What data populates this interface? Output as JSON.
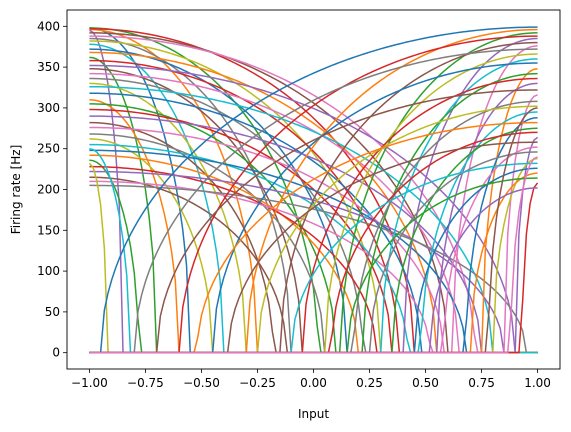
{
  "chart_data": {
    "type": "line",
    "title": "",
    "xlabel": "Input",
    "ylabel": "Firing rate [Hz]",
    "xlim": [
      -1.1,
      1.1
    ],
    "ylim": [
      -20,
      420
    ],
    "grid": false,
    "legend": "none",
    "xticks": [
      -1.0,
      -0.75,
      -0.5,
      -0.25,
      0.0,
      0.25,
      0.5,
      0.75,
      1.0
    ],
    "xtick_labels": [
      "−1.00",
      "−0.75",
      "−0.50",
      "−0.25",
      "0.00",
      "0.25",
      "0.50",
      "0.75",
      "1.00"
    ],
    "yticks": [
      0,
      50,
      100,
      150,
      200,
      250,
      300,
      350,
      400
    ],
    "ytick_labels": [
      "0",
      "50",
      "100",
      "150",
      "200",
      "250",
      "300",
      "350",
      "400"
    ],
    "palette": [
      "#1f77b4",
      "#ff7f0e",
      "#2ca02c",
      "#d62728",
      "#9467bd",
      "#8c564b",
      "#e377c2",
      "#7f7f7f",
      "#bcbd22",
      "#17becf"
    ],
    "curve_model": "rate = max_rate * (1 - max(0, 1 - enc*(x - intercept)/(1 - intercept))^2)^0.5 style rectified tuning curve",
    "x_samples": [
      -1.0,
      -0.95,
      -0.9,
      -0.85,
      -0.8,
      -0.75,
      -0.7,
      -0.65,
      -0.6,
      -0.55,
      -0.5,
      -0.45,
      -0.4,
      -0.35,
      -0.3,
      -0.25,
      -0.2,
      -0.15,
      -0.1,
      -0.05,
      0.0,
      0.05,
      0.1,
      0.15,
      0.2,
      0.25,
      0.3,
      0.35,
      0.4,
      0.45,
      0.5,
      0.55,
      0.6,
      0.65,
      0.7,
      0.75,
      0.8,
      0.85,
      0.9,
      0.95,
      1.0
    ],
    "series": [
      {
        "encoder": -1,
        "intercept": -0.55,
        "max_rate": 398
      },
      {
        "encoder": -1,
        "intercept": -0.25,
        "max_rate": 396
      },
      {
        "encoder": -1,
        "intercept": 0.02,
        "max_rate": 398
      },
      {
        "encoder": -1,
        "intercept": 0.45,
        "max_rate": 397
      },
      {
        "encoder": -1,
        "intercept": -0.85,
        "max_rate": 395
      },
      {
        "encoder": -1,
        "intercept": 0.6,
        "max_rate": 392
      },
      {
        "encoder": -1,
        "intercept": 0.72,
        "max_rate": 388
      },
      {
        "encoder": -1,
        "intercept": -0.1,
        "max_rate": 385
      },
      {
        "encoder": -1,
        "intercept": 0.3,
        "max_rate": 382
      },
      {
        "encoder": -1,
        "intercept": -0.4,
        "max_rate": 378
      },
      {
        "encoder": -1,
        "intercept": 0.15,
        "max_rate": 372
      },
      {
        "encoder": -1,
        "intercept": 0.55,
        "max_rate": 368
      },
      {
        "encoder": -1,
        "intercept": -0.7,
        "max_rate": 362
      },
      {
        "encoder": -1,
        "intercept": 0.38,
        "max_rate": 358
      },
      {
        "encoder": -1,
        "intercept": 0.9,
        "max_rate": 352
      },
      {
        "encoder": -1,
        "intercept": -0.05,
        "max_rate": 348
      },
      {
        "encoder": -1,
        "intercept": 0.65,
        "max_rate": 342
      },
      {
        "encoder": -1,
        "intercept": 0.22,
        "max_rate": 336
      },
      {
        "encoder": -1,
        "intercept": -0.3,
        "max_rate": 330
      },
      {
        "encoder": -1,
        "intercept": 0.8,
        "max_rate": 326
      },
      {
        "encoder": -1,
        "intercept": 0.48,
        "max_rate": 318
      },
      {
        "encoder": -1,
        "intercept": -0.6,
        "max_rate": 310
      },
      {
        "encoder": -1,
        "intercept": 0.1,
        "max_rate": 305
      },
      {
        "encoder": -1,
        "intercept": 0.35,
        "max_rate": 298
      },
      {
        "encoder": -1,
        "intercept": 0.75,
        "max_rate": 290
      },
      {
        "encoder": -1,
        "intercept": -0.18,
        "max_rate": 282
      },
      {
        "encoder": -1,
        "intercept": 0.58,
        "max_rate": 276
      },
      {
        "encoder": -1,
        "intercept": 0.05,
        "max_rate": 268
      },
      {
        "encoder": -1,
        "intercept": -0.45,
        "max_rate": 262
      },
      {
        "encoder": -1,
        "intercept": 0.42,
        "max_rate": 255
      },
      {
        "encoder": -1,
        "intercept": 0.68,
        "max_rate": 248
      },
      {
        "encoder": -1,
        "intercept": 0.2,
        "max_rate": 242
      },
      {
        "encoder": -1,
        "intercept": -0.78,
        "max_rate": 236
      },
      {
        "encoder": -1,
        "intercept": 0.28,
        "max_rate": 228
      },
      {
        "encoder": -1,
        "intercept": 0.85,
        "max_rate": 222
      },
      {
        "encoder": -1,
        "intercept": -0.12,
        "max_rate": 215
      },
      {
        "encoder": -1,
        "intercept": 0.52,
        "max_rate": 210
      },
      {
        "encoder": -1,
        "intercept": 0.95,
        "max_rate": 205
      },
      {
        "encoder": -1,
        "intercept": -0.92,
        "max_rate": 232
      },
      {
        "encoder": -1,
        "intercept": -0.82,
        "max_rate": 250
      },
      {
        "encoder": 1,
        "intercept": -0.95,
        "max_rate": 399
      },
      {
        "encoder": 1,
        "intercept": -0.3,
        "max_rate": 396
      },
      {
        "encoder": 1,
        "intercept": 0.12,
        "max_rate": 392
      },
      {
        "encoder": 1,
        "intercept": -0.6,
        "max_rate": 388
      },
      {
        "encoder": 1,
        "intercept": 0.4,
        "max_rate": 385
      },
      {
        "encoder": 1,
        "intercept": -0.15,
        "max_rate": 380
      },
      {
        "encoder": 1,
        "intercept": 0.62,
        "max_rate": 376
      },
      {
        "encoder": 1,
        "intercept": -0.8,
        "max_rate": 372
      },
      {
        "encoder": 1,
        "intercept": 0.05,
        "max_rate": 366
      },
      {
        "encoder": 1,
        "intercept": 0.3,
        "max_rate": 360
      },
      {
        "encoder": 1,
        "intercept": -0.45,
        "max_rate": 355
      },
      {
        "encoder": 1,
        "intercept": 0.75,
        "max_rate": 348
      },
      {
        "encoder": 1,
        "intercept": 0.22,
        "max_rate": 342
      },
      {
        "encoder": 1,
        "intercept": -0.05,
        "max_rate": 336
      },
      {
        "encoder": 1,
        "intercept": 0.55,
        "max_rate": 330
      },
      {
        "encoder": 1,
        "intercept": -0.7,
        "max_rate": 322
      },
      {
        "encoder": 1,
        "intercept": 0.85,
        "max_rate": 316
      },
      {
        "encoder": 1,
        "intercept": 0.18,
        "max_rate": 308
      },
      {
        "encoder": 1,
        "intercept": -0.25,
        "max_rate": 302
      },
      {
        "encoder": 1,
        "intercept": 0.48,
        "max_rate": 295
      },
      {
        "encoder": 1,
        "intercept": 0.68,
        "max_rate": 288
      },
      {
        "encoder": 1,
        "intercept": -0.52,
        "max_rate": 282
      },
      {
        "encoder": 1,
        "intercept": 0.35,
        "max_rate": 275
      },
      {
        "encoder": 1,
        "intercept": 0.08,
        "max_rate": 270
      },
      {
        "encoder": 1,
        "intercept": 0.9,
        "max_rate": 264
      },
      {
        "encoder": 1,
        "intercept": -0.38,
        "max_rate": 258
      },
      {
        "encoder": 1,
        "intercept": 0.58,
        "max_rate": 252
      },
      {
        "encoder": 1,
        "intercept": 0.25,
        "max_rate": 246
      },
      {
        "encoder": 1,
        "intercept": 0.8,
        "max_rate": 238
      },
      {
        "encoder": 1,
        "intercept": -0.1,
        "max_rate": 232
      },
      {
        "encoder": 1,
        "intercept": 0.45,
        "max_rate": 226
      },
      {
        "encoder": 1,
        "intercept": 0.7,
        "max_rate": 220
      },
      {
        "encoder": 1,
        "intercept": 0.15,
        "max_rate": 214
      },
      {
        "encoder": 1,
        "intercept": 0.93,
        "max_rate": 208
      },
      {
        "encoder": 1,
        "intercept": 0.52,
        "max_rate": 202
      },
      {
        "encoder": 1,
        "intercept": 0.78,
        "max_rate": 300
      },
      {
        "encoder": 1,
        "intercept": 0.88,
        "max_rate": 240
      }
    ]
  }
}
